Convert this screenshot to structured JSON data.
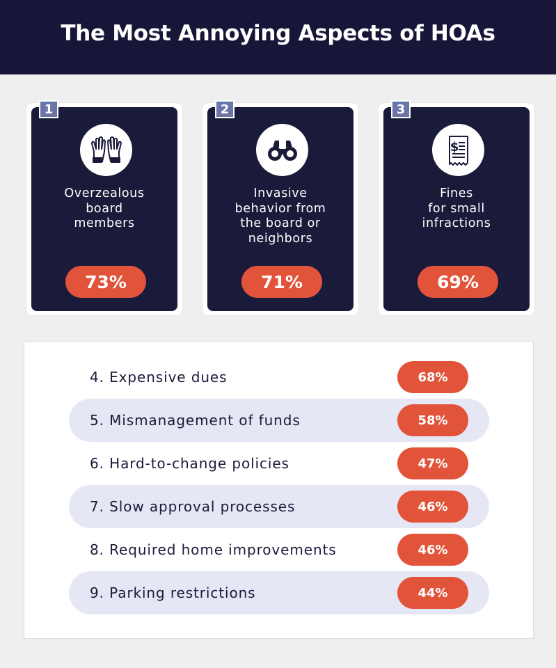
{
  "title": "The Most Annoying Aspects of HOAs",
  "colors": {
    "header_bg": "#171638",
    "card_bg": "#1a1a3a",
    "accent": "#e2543a",
    "badge": "#6b75a8",
    "row_shade": "#e5e7f4"
  },
  "top_items": [
    {
      "rank": "1",
      "label": "Overzealous\nboard\nmembers",
      "value_label": "73%",
      "icon": "raised-hands-icon"
    },
    {
      "rank": "2",
      "label": "Invasive\nbehavior from\nthe board or\nneighbors",
      "value_label": "71%",
      "icon": "binoculars-icon"
    },
    {
      "rank": "3",
      "label": "Fines\nfor small\ninfractions",
      "value_label": "69%",
      "icon": "receipt-icon"
    }
  ],
  "list_items": [
    {
      "label": "4. Expensive dues",
      "value_label": "68%"
    },
    {
      "label": "5. Mismanagement of funds",
      "value_label": "58%"
    },
    {
      "label": "6. Hard-to-change policies",
      "value_label": "47%"
    },
    {
      "label": "7. Slow approval processes",
      "value_label": "46%"
    },
    {
      "label": "8. Required home improvements",
      "value_label": "46%"
    },
    {
      "label": "9. Parking restrictions",
      "value_label": "44%"
    }
  ],
  "chart_data": {
    "type": "table",
    "title": "The Most Annoying Aspects of HOAs",
    "categories": [
      "Overzealous board members",
      "Invasive behavior from the board or neighbors",
      "Fines for small infractions",
      "Expensive dues",
      "Mismanagement of funds",
      "Hard-to-change policies",
      "Slow approval processes",
      "Required home improvements",
      "Parking restrictions"
    ],
    "values": [
      73,
      71,
      69,
      68,
      58,
      47,
      46,
      46,
      44
    ],
    "unit": "%"
  }
}
